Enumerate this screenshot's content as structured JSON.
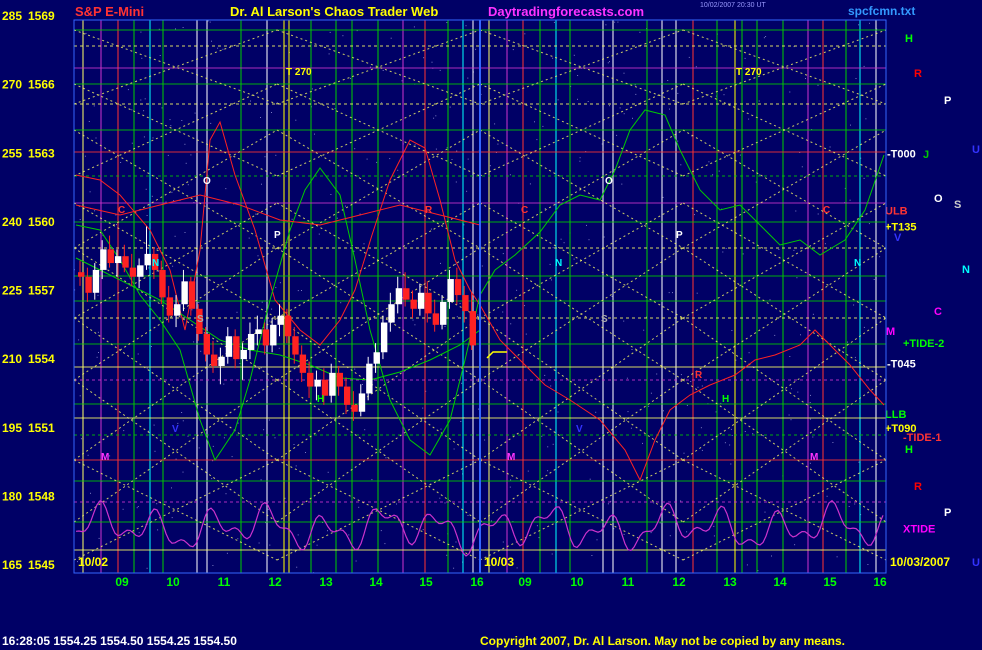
{
  "header": {
    "left": "S&P E-Mini",
    "center": "Dr. Al Larson's Chaos Trader Web",
    "site": "Daytradingforecasts.com",
    "tiny_line1": "10/02/2007 20:30 UT",
    "tiny_line2": "",
    "file": "spcfcmn.txt"
  },
  "footer": {
    "quote": "16:28:05  1554.25  1554.50  1554.25  1554.50",
    "copyright": "Copyright 2007, Dr. Al Larson. May not be copied by any means."
  },
  "colors": {
    "background": "#000066",
    "price_up": "#ffffff",
    "price_down": "#ff2222",
    "grid_green": "#00cc00",
    "diag_yellow": "#ffff66",
    "cycle_magenta": "#cc33cc"
  },
  "chart_data": {
    "type": "candlestick-with-overlays",
    "title": "S&P E-Mini",
    "y_axis": {
      "ticks": [
        {
          "left": "285",
          "right": "1569"
        },
        {
          "left": "270",
          "right": "1566"
        },
        {
          "left": "255",
          "right": "1563"
        },
        {
          "left": "240",
          "right": "1560"
        },
        {
          "left": "225",
          "right": "1557"
        },
        {
          "left": "210",
          "right": "1554"
        },
        {
          "left": "195",
          "right": "1551"
        },
        {
          "left": "180",
          "right": "1548"
        },
        {
          "left": "165",
          "right": "1545"
        }
      ],
      "range": [
        1545,
        1569
      ]
    },
    "x_axis": {
      "ticks": [
        "09",
        "10",
        "11",
        "12",
        "13",
        "14",
        "15",
        "16",
        "09",
        "10",
        "11",
        "12",
        "13",
        "14",
        "15",
        "16"
      ],
      "date_labels": [
        "10/02",
        "10/03",
        "10/03/2007"
      ]
    },
    "price_bars_approx": [
      [
        1557.8,
        1558.3,
        1557.2,
        1557.6
      ],
      [
        1557.6,
        1558.0,
        1556.5,
        1556.9
      ],
      [
        1556.9,
        1558.2,
        1556.6,
        1557.9
      ],
      [
        1557.9,
        1559.2,
        1557.5,
        1558.8
      ],
      [
        1558.8,
        1559.4,
        1558.0,
        1558.2
      ],
      [
        1558.2,
        1558.8,
        1557.6,
        1558.5
      ],
      [
        1558.5,
        1559.0,
        1557.8,
        1558.0
      ],
      [
        1558.0,
        1558.6,
        1557.2,
        1557.6
      ],
      [
        1557.6,
        1558.4,
        1557.1,
        1558.1
      ],
      [
        1558.1,
        1559.8,
        1557.9,
        1558.6
      ],
      [
        1558.6,
        1558.9,
        1557.5,
        1557.9
      ],
      [
        1557.9,
        1558.3,
        1556.4,
        1556.7
      ],
      [
        1556.7,
        1557.2,
        1555.6,
        1555.9
      ],
      [
        1555.9,
        1556.8,
        1555.4,
        1556.4
      ],
      [
        1556.4,
        1557.9,
        1556.1,
        1557.4
      ],
      [
        1557.4,
        1557.6,
        1555.9,
        1556.2
      ],
      [
        1556.2,
        1556.4,
        1554.8,
        1555.1
      ],
      [
        1555.1,
        1555.4,
        1553.9,
        1554.2
      ],
      [
        1554.2,
        1554.8,
        1553.4,
        1553.7
      ],
      [
        1553.7,
        1554.5,
        1552.9,
        1554.1
      ],
      [
        1554.1,
        1555.4,
        1553.8,
        1555.0
      ],
      [
        1555.0,
        1555.3,
        1553.6,
        1554.0
      ],
      [
        1554.0,
        1554.7,
        1553.1,
        1554.4
      ],
      [
        1554.4,
        1555.6,
        1554.0,
        1555.1
      ],
      [
        1555.1,
        1555.9,
        1554.6,
        1555.3
      ],
      [
        1555.3,
        1555.6,
        1554.2,
        1554.6
      ],
      [
        1554.6,
        1555.8,
        1554.3,
        1555.5
      ],
      [
        1555.5,
        1556.4,
        1555.0,
        1555.9
      ],
      [
        1555.9,
        1556.2,
        1554.7,
        1555.0
      ],
      [
        1555.0,
        1555.4,
        1553.8,
        1554.2
      ],
      [
        1554.2,
        1554.6,
        1553.0,
        1553.4
      ],
      [
        1553.4,
        1553.9,
        1552.3,
        1552.8
      ],
      [
        1552.8,
        1553.5,
        1552.2,
        1553.1
      ],
      [
        1553.1,
        1553.6,
        1552.0,
        1552.4
      ],
      [
        1552.4,
        1553.8,
        1552.1,
        1553.4
      ],
      [
        1553.4,
        1553.7,
        1552.4,
        1552.8
      ],
      [
        1552.8,
        1553.2,
        1551.6,
        1552.0
      ],
      [
        1552.0,
        1552.6,
        1551.3,
        1551.7
      ],
      [
        1551.7,
        1552.9,
        1551.5,
        1552.5
      ],
      [
        1552.5,
        1554.1,
        1552.2,
        1553.8
      ],
      [
        1553.8,
        1554.7,
        1553.4,
        1554.3
      ],
      [
        1554.3,
        1555.9,
        1554.0,
        1555.6
      ],
      [
        1555.6,
        1556.9,
        1555.2,
        1556.4
      ],
      [
        1556.4,
        1557.6,
        1556.0,
        1557.1
      ],
      [
        1557.1,
        1557.8,
        1556.3,
        1556.6
      ],
      [
        1556.6,
        1557.0,
        1555.8,
        1556.2
      ],
      [
        1556.2,
        1557.3,
        1555.9,
        1556.9
      ],
      [
        1556.9,
        1557.4,
        1555.6,
        1556.0
      ],
      [
        1556.0,
        1556.6,
        1555.2,
        1555.5
      ],
      [
        1555.5,
        1556.8,
        1555.3,
        1556.5
      ],
      [
        1556.5,
        1557.9,
        1556.2,
        1557.5
      ],
      [
        1557.5,
        1558.0,
        1556.4,
        1556.8
      ],
      [
        1556.8,
        1557.2,
        1555.6,
        1556.1
      ],
      [
        1556.1,
        1556.9,
        1554.4,
        1554.6
      ]
    ],
    "level_labels": [
      {
        "text": "-T000",
        "y": 1563.0,
        "color": "#ffffff"
      },
      {
        "text": "ULB",
        "y": 1560.5,
        "color": "#ff3333"
      },
      {
        "text": "+T135",
        "y": 1559.8,
        "color": "#ffff00"
      },
      {
        "text": "+TIDE-2",
        "y": 1554.7,
        "color": "#00ff00"
      },
      {
        "text": "-T045",
        "y": 1553.8,
        "color": "#ffffff"
      },
      {
        "text": "LLB",
        "y": 1551.6,
        "color": "#00ff00"
      },
      {
        "text": "+T090",
        "y": 1551.0,
        "color": "#ffff00"
      },
      {
        "text": "-TIDE-1",
        "y": 1550.6,
        "color": "#ff3333"
      },
      {
        "text": "XTIDE",
        "y": 1546.6,
        "color": "#ff00ff"
      }
    ],
    "planet_letters": [
      {
        "t": "H",
        "c": "#00ff00"
      },
      {
        "t": "R",
        "c": "#ff0000"
      },
      {
        "t": "P",
        "c": "#ffffff"
      },
      {
        "t": "J",
        "c": "#00cc00"
      },
      {
        "t": "U",
        "c": "#3333ff"
      },
      {
        "t": "O",
        "c": "#ffffff"
      },
      {
        "t": "S",
        "c": "#cccccc"
      },
      {
        "t": "V",
        "c": "#3333ff"
      },
      {
        "t": "N",
        "c": "#00ffff"
      },
      {
        "t": "C",
        "c": "#ff00ff"
      },
      {
        "t": "M",
        "c": "#ff00ff"
      },
      {
        "t": "H",
        "c": "#00ff00"
      },
      {
        "t": "R",
        "c": "#ff0000"
      },
      {
        "t": "P",
        "c": "#ffffff"
      },
      {
        "t": "U",
        "c": "#3333ff"
      }
    ],
    "marker_labels": [
      "T 270",
      "T 270"
    ],
    "inchart_letters": [
      "O",
      "C",
      "P",
      "S",
      "N",
      "V",
      "M",
      "R",
      "H",
      "O",
      "C",
      "P",
      "S",
      "N",
      "V",
      "M",
      "R",
      "H",
      "C",
      "N",
      "M"
    ]
  }
}
